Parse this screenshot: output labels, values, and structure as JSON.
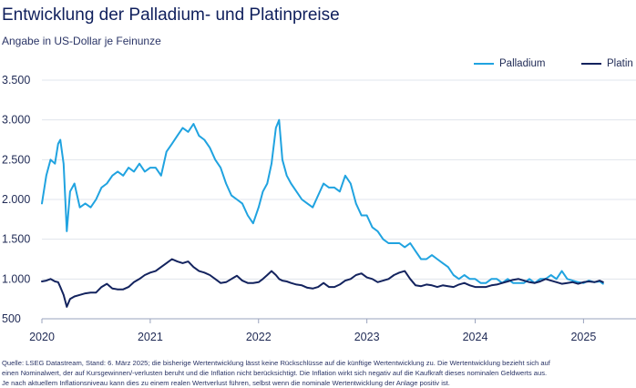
{
  "title": "Entwicklung der Palladium- und Platinpreise",
  "subtitle": "Angabe in US-Dollar je Feinunze",
  "source_lines": [
    "Quelle: LSEG Datastream, Stand: 6. März 2025; die bisherige Wertentwicklung lässt keine Rückschlüsse auf die künftige Wertentwicklung zu. Die Wertentwicklung bezieht sich auf",
    "einen Nominalwert, der auf Kursgewinnen/-verlusten beruht und die Inflation nicht berücksichtigt. Die Inflation wirkt sich negativ auf die Kaufkraft dieses nominalen Geldwerts aus.",
    "Je nach aktuellem Inflationsniveau kann dies zu einem realen Wertverlust führen, selbst wenn die nominale Wertentwicklung der Anlage positiv ist."
  ],
  "chart_data": {
    "type": "line",
    "title": "Entwicklung der Palladium- und Platinpreise",
    "subtitle": "Angabe in US-Dollar je Feinunze",
    "ylim": [
      500,
      3500
    ],
    "yticks": [
      500,
      1000,
      1500,
      2000,
      2500,
      3000,
      3500
    ],
    "ytick_labels": [
      "500",
      "1.000",
      "1.500",
      "2.000",
      "2.500",
      "3.000",
      "3.500"
    ],
    "xlim": [
      2020.0,
      2025.35
    ],
    "xticks": [
      2020,
      2021,
      2022,
      2023,
      2024,
      2025
    ],
    "xtick_labels": [
      "2020",
      "2021",
      "2022",
      "2023",
      "2024",
      "2025"
    ],
    "grid": "horizontal",
    "legend_position": "top-right",
    "series": [
      {
        "name": "Palladium",
        "color": "#20a3e0",
        "x": [
          2020.0,
          2020.04,
          2020.08,
          2020.12,
          2020.15,
          2020.17,
          2020.2,
          2020.23,
          2020.26,
          2020.3,
          2020.35,
          2020.4,
          2020.45,
          2020.5,
          2020.55,
          2020.6,
          2020.65,
          2020.7,
          2020.75,
          2020.8,
          2020.85,
          2020.9,
          2020.95,
          2021.0,
          2021.05,
          2021.1,
          2021.15,
          2021.2,
          2021.25,
          2021.3,
          2021.35,
          2021.4,
          2021.45,
          2021.5,
          2021.55,
          2021.6,
          2021.65,
          2021.7,
          2021.75,
          2021.8,
          2021.85,
          2021.9,
          2021.95,
          2022.0,
          2022.04,
          2022.08,
          2022.12,
          2022.16,
          2022.19,
          2022.22,
          2022.26,
          2022.3,
          2022.35,
          2022.4,
          2022.45,
          2022.5,
          2022.55,
          2022.6,
          2022.65,
          2022.7,
          2022.75,
          2022.8,
          2022.85,
          2022.9,
          2022.95,
          2023.0,
          2023.05,
          2023.1,
          2023.15,
          2023.2,
          2023.25,
          2023.3,
          2023.35,
          2023.4,
          2023.45,
          2023.5,
          2023.55,
          2023.6,
          2023.65,
          2023.7,
          2023.75,
          2023.8,
          2023.85,
          2023.9,
          2023.95,
          2024.0,
          2024.05,
          2024.1,
          2024.15,
          2024.2,
          2024.25,
          2024.3,
          2024.35,
          2024.4,
          2024.45,
          2024.5,
          2024.55,
          2024.6,
          2024.65,
          2024.7,
          2024.75,
          2024.8,
          2024.85,
          2024.9,
          2024.95,
          2025.0,
          2025.05,
          2025.1,
          2025.15,
          2025.18
        ],
        "y": [
          1950,
          2300,
          2500,
          2450,
          2700,
          2750,
          2450,
          1600,
          2100,
          2200,
          1900,
          1950,
          1900,
          2000,
          2150,
          2200,
          2300,
          2350,
          2300,
          2400,
          2350,
          2450,
          2350,
          2400,
          2400,
          2300,
          2600,
          2700,
          2800,
          2900,
          2850,
          2950,
          2800,
          2750,
          2650,
          2500,
          2400,
          2200,
          2050,
          2000,
          1950,
          1800,
          1700,
          1900,
          2100,
          2200,
          2450,
          2900,
          3000,
          2500,
          2300,
          2200,
          2100,
          2000,
          1950,
          1900,
          2050,
          2200,
          2150,
          2150,
          2100,
          2300,
          2200,
          1950,
          1800,
          1800,
          1650,
          1600,
          1500,
          1450,
          1450,
          1450,
          1400,
          1450,
          1350,
          1250,
          1250,
          1300,
          1250,
          1200,
          1150,
          1050,
          1000,
          1050,
          1000,
          1000,
          950,
          950,
          1000,
          1000,
          950,
          1000,
          950,
          950,
          950,
          1000,
          950,
          1000,
          1000,
          1050,
          1000,
          1100,
          1000,
          980,
          960,
          950,
          980,
          960,
          970,
          940
        ]
      },
      {
        "name": "Platin",
        "color": "#13235e",
        "x": [
          2020.0,
          2020.04,
          2020.08,
          2020.12,
          2020.15,
          2020.17,
          2020.2,
          2020.23,
          2020.26,
          2020.3,
          2020.35,
          2020.4,
          2020.45,
          2020.5,
          2020.55,
          2020.6,
          2020.65,
          2020.7,
          2020.75,
          2020.8,
          2020.85,
          2020.9,
          2020.95,
          2021.0,
          2021.05,
          2021.1,
          2021.15,
          2021.2,
          2021.25,
          2021.3,
          2021.35,
          2021.4,
          2021.45,
          2021.5,
          2021.55,
          2021.6,
          2021.65,
          2021.7,
          2021.75,
          2021.8,
          2021.85,
          2021.9,
          2021.95,
          2022.0,
          2022.04,
          2022.08,
          2022.12,
          2022.16,
          2022.19,
          2022.22,
          2022.26,
          2022.3,
          2022.35,
          2022.4,
          2022.45,
          2022.5,
          2022.55,
          2022.6,
          2022.65,
          2022.7,
          2022.75,
          2022.8,
          2022.85,
          2022.9,
          2022.95,
          2023.0,
          2023.05,
          2023.1,
          2023.15,
          2023.2,
          2023.25,
          2023.3,
          2023.35,
          2023.4,
          2023.45,
          2023.5,
          2023.55,
          2023.6,
          2023.65,
          2023.7,
          2023.75,
          2023.8,
          2023.85,
          2023.9,
          2023.95,
          2024.0,
          2024.05,
          2024.1,
          2024.15,
          2024.2,
          2024.25,
          2024.3,
          2024.35,
          2024.4,
          2024.45,
          2024.5,
          2024.55,
          2024.6,
          2024.65,
          2024.7,
          2024.75,
          2024.8,
          2024.85,
          2024.9,
          2024.95,
          2025.0,
          2025.05,
          2025.1,
          2025.15,
          2025.18
        ],
        "y": [
          970,
          980,
          1000,
          970,
          960,
          900,
          800,
          650,
          750,
          780,
          800,
          820,
          830,
          830,
          900,
          940,
          880,
          870,
          870,
          900,
          960,
          1000,
          1050,
          1080,
          1100,
          1150,
          1200,
          1250,
          1220,
          1200,
          1220,
          1150,
          1100,
          1080,
          1050,
          1000,
          950,
          960,
          1000,
          1040,
          980,
          950,
          950,
          960,
          1000,
          1050,
          1100,
          1050,
          1000,
          980,
          970,
          950,
          930,
          920,
          890,
          880,
          900,
          950,
          900,
          900,
          930,
          980,
          1000,
          1050,
          1070,
          1020,
          1000,
          960,
          980,
          1000,
          1050,
          1080,
          1100,
          1000,
          920,
          910,
          930,
          920,
          900,
          920,
          910,
          900,
          930,
          950,
          920,
          900,
          900,
          900,
          920,
          930,
          950,
          970,
          990,
          1000,
          980,
          960,
          950,
          970,
          1000,
          980,
          960,
          940,
          950,
          960,
          940,
          960,
          970,
          960,
          980,
          960
        ]
      }
    ]
  }
}
